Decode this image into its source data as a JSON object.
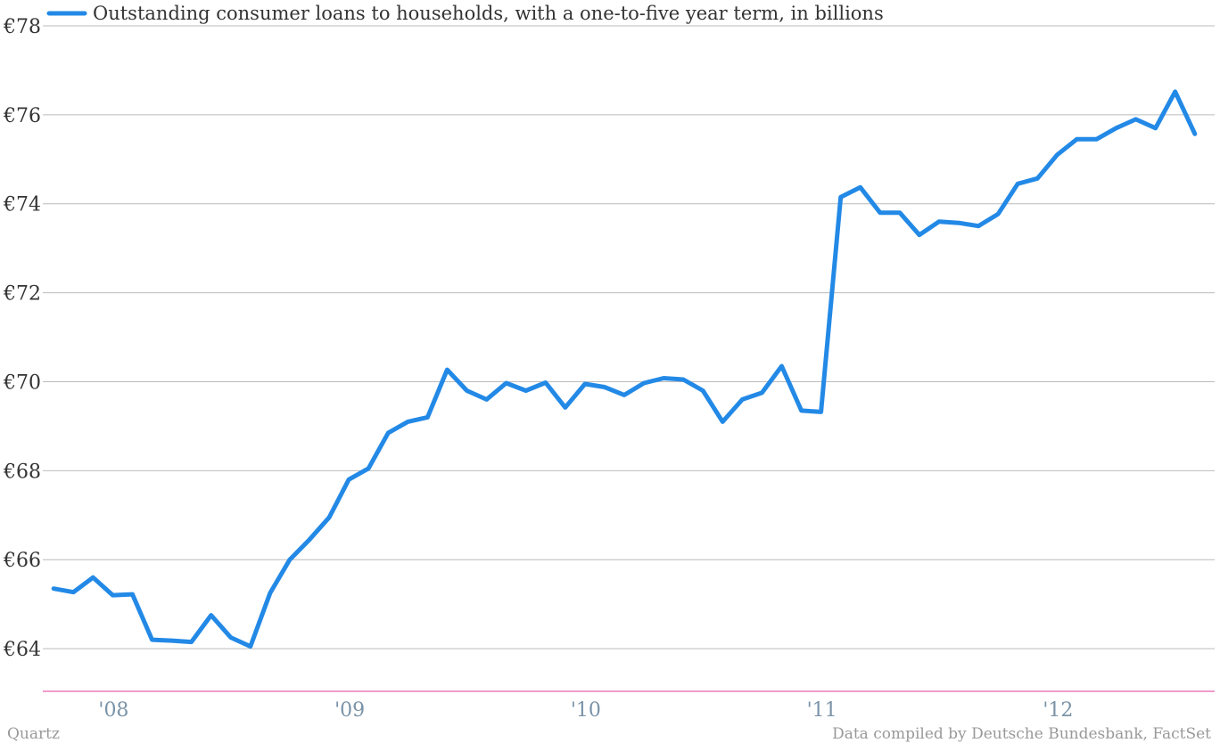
{
  "footer": {
    "credit": "Quartz",
    "source": "Data compiled by Deutsche Bundesbank, FactSet"
  },
  "colors": {
    "series": "#2389e6",
    "grid": "#bbbbbb",
    "axis": "#e0389a"
  },
  "chart_data": {
    "type": "line",
    "title": "",
    "xlabel": "",
    "ylabel": "",
    "ylim": [
      63,
      78
    ],
    "yticks": [
      64,
      66,
      68,
      70,
      72,
      74,
      76,
      78
    ],
    "ytick_labels": [
      "€64",
      "€66",
      "€68",
      "€70",
      "€72",
      "€74",
      "€76",
      "€78"
    ],
    "xlim": [
      "2007-10",
      "2012-08"
    ],
    "xticks": [
      "2008-01",
      "2009-01",
      "2010-01",
      "2011-01",
      "2012-01"
    ],
    "xtick_labels": [
      "'08",
      "'09",
      "'10",
      "'11",
      "'12"
    ],
    "grid": true,
    "legend_position": "top-left",
    "series": [
      {
        "name": "Outstanding consumer loans to households, with a one-to-five year term, in billions",
        "color": "#2389e6",
        "x": [
          "2007-10",
          "2007-11",
          "2007-12",
          "2008-01",
          "2008-02",
          "2008-03",
          "2008-04",
          "2008-05",
          "2008-06",
          "2008-07",
          "2008-08",
          "2008-09",
          "2008-10",
          "2008-11",
          "2008-12",
          "2009-01",
          "2009-02",
          "2009-03",
          "2009-04",
          "2009-05",
          "2009-06",
          "2009-07",
          "2009-08",
          "2009-09",
          "2009-10",
          "2009-11",
          "2009-12",
          "2010-01",
          "2010-02",
          "2010-03",
          "2010-04",
          "2010-05",
          "2010-06",
          "2010-07",
          "2010-08",
          "2010-09",
          "2010-10",
          "2010-11",
          "2010-12",
          "2011-01",
          "2011-02",
          "2011-03",
          "2011-04",
          "2011-05",
          "2011-06",
          "2011-07",
          "2011-08",
          "2011-09",
          "2011-10",
          "2011-11",
          "2011-12",
          "2012-01",
          "2012-02",
          "2012-03",
          "2012-04",
          "2012-05",
          "2012-06",
          "2012-07",
          "2012-08"
        ],
        "values": [
          65.35,
          65.27,
          65.6,
          65.2,
          65.22,
          64.2,
          64.18,
          64.15,
          64.75,
          64.25,
          64.05,
          65.25,
          66.0,
          66.45,
          66.95,
          67.8,
          68.05,
          68.85,
          69.1,
          69.2,
          70.27,
          69.8,
          69.6,
          69.97,
          69.8,
          69.98,
          69.42,
          69.95,
          69.88,
          69.7,
          69.97,
          70.08,
          70.05,
          69.8,
          69.1,
          69.6,
          69.75,
          70.35,
          69.35,
          69.32,
          74.15,
          74.37,
          73.8,
          73.8,
          73.3,
          73.6,
          73.57,
          73.5,
          73.77,
          74.45,
          74.57,
          75.1,
          75.45,
          75.45,
          75.7,
          75.9,
          75.7,
          76.52,
          75.57
        ]
      }
    ]
  }
}
